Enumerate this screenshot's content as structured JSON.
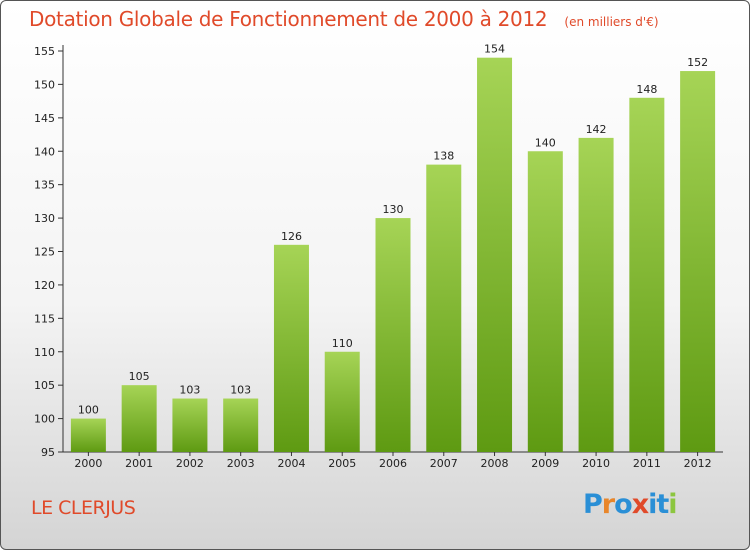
{
  "header": {
    "title": "Dotation Globale de Fonctionnement de 2000 à 2012",
    "unit": "(en milliers d'€)"
  },
  "footer": {
    "commune": "LE CLERJUS",
    "logo_text": "Proxiti"
  },
  "colors": {
    "title": "#e04a2a",
    "bar_light": "#a6d456",
    "bar_dark": "#5e9a12",
    "logo_letters": [
      "#2a8fd6",
      "#e8862a",
      "#2a8fd6",
      "#e04a2a",
      "#2a8fd6",
      "#2a8fd6",
      "#8cc63f"
    ]
  },
  "chart_data": {
    "type": "bar",
    "categories": [
      "2000",
      "2001",
      "2002",
      "2003",
      "2004",
      "2005",
      "2006",
      "2007",
      "2008",
      "2009",
      "2010",
      "2011",
      "2012"
    ],
    "values": [
      100,
      105,
      103,
      103,
      126,
      110,
      130,
      138,
      154,
      140,
      142,
      148,
      152
    ],
    "ylim": [
      95,
      155
    ],
    "yticks": [
      95,
      100,
      105,
      110,
      115,
      120,
      125,
      130,
      135,
      140,
      145,
      150,
      155
    ],
    "grid": false,
    "xlabel": "",
    "ylabel": ""
  }
}
